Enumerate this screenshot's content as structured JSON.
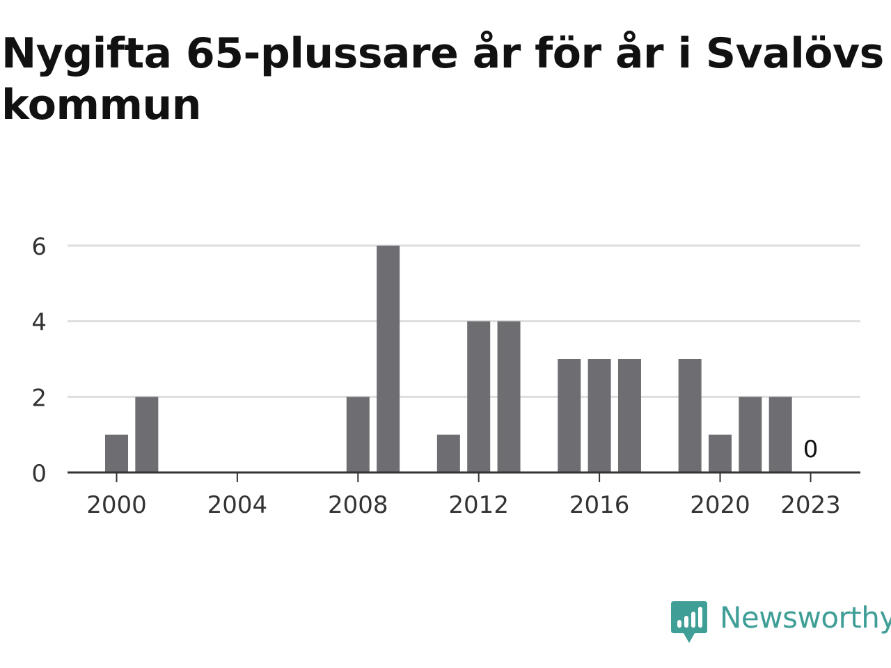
{
  "chart_data": {
    "type": "bar",
    "title": "Nygifta 65-plussare år för år i Svalövs kommun",
    "xlabel": "",
    "ylabel": "",
    "categories": [
      "2000",
      "2001",
      "2002",
      "2003",
      "2004",
      "2005",
      "2006",
      "2007",
      "2008",
      "2009",
      "2010",
      "2011",
      "2012",
      "2013",
      "2014",
      "2015",
      "2016",
      "2017",
      "2018",
      "2019",
      "2020",
      "2021",
      "2022",
      "2023"
    ],
    "values": [
      1,
      2,
      0,
      0,
      0,
      0,
      0,
      0,
      2,
      6,
      0,
      1,
      4,
      4,
      0,
      3,
      3,
      3,
      0,
      3,
      1,
      2,
      2,
      0
    ],
    "xticks": [
      "2000",
      "2004",
      "2008",
      "2012",
      "2016",
      "2020",
      "2023"
    ],
    "yticks": [
      0,
      2,
      4,
      6
    ],
    "ylim": [
      0,
      6
    ],
    "grid": true,
    "annotations": [
      {
        "category": "2023",
        "text": "0"
      }
    ],
    "colors": {
      "bar": "#6e6d72",
      "grid": "#dedede",
      "axis": "#333333",
      "tick_label": "#333333"
    }
  },
  "brand": {
    "name": "Newsworthy",
    "logo_icon": "newsworthy-logo-icon",
    "color": "#3f9e96"
  }
}
